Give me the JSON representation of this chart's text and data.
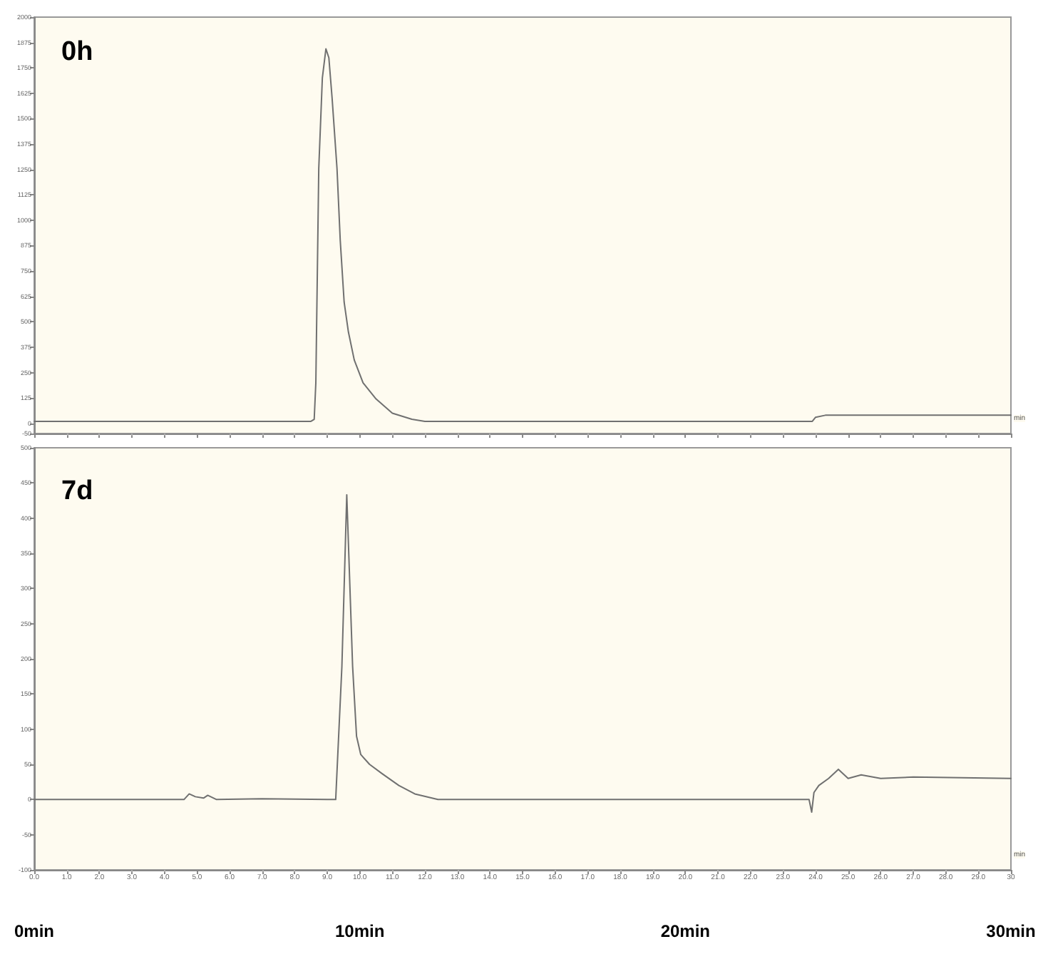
{
  "chart_data": [
    {
      "type": "line",
      "title": "0h",
      "xlabel": "min",
      "xlim": [
        0,
        30
      ],
      "xticks": [
        0,
        1,
        2,
        3,
        4,
        5,
        6,
        7,
        8,
        9,
        10,
        11,
        12,
        13,
        14,
        15,
        16,
        17,
        18,
        19,
        20,
        21,
        22,
        23,
        24,
        25,
        26,
        27,
        28,
        29,
        30
      ],
      "ylim": [
        -50,
        2000
      ],
      "yticks": [
        -50,
        0,
        125,
        250,
        375,
        500,
        625,
        750,
        875,
        1000,
        1125,
        1250,
        1375,
        1500,
        1625,
        1750,
        1875,
        2000
      ],
      "tick_labels": "y",
      "grid": false,
      "marker": "none",
      "line_style": "solid",
      "series": [
        {
          "color": "#707070",
          "x": [
            0,
            4,
            8.5,
            8.6,
            8.65,
            8.74,
            8.85,
            8.96,
            9.05,
            9.15,
            9.3,
            9.4,
            9.52,
            9.65,
            9.83,
            10.1,
            10.5,
            11.0,
            11.6,
            12,
            15,
            20,
            23.8,
            23.9,
            24.0,
            24.3,
            25,
            30
          ],
          "values": [
            10,
            10,
            10,
            20,
            200,
            1255,
            1700,
            1844,
            1800,
            1600,
            1255,
            900,
            596,
            450,
            312,
            200,
            120,
            50,
            20,
            10,
            10,
            10,
            10,
            10,
            30,
            40,
            40,
            40
          ]
        }
      ]
    },
    {
      "type": "line",
      "title": "7d",
      "xlabel": "min",
      "xlim": [
        0,
        30
      ],
      "xticks": [
        {
          "value": 0,
          "label": "0.0"
        },
        {
          "value": 1,
          "label": "1.0"
        },
        {
          "value": 2,
          "label": "2.0"
        },
        {
          "value": 3,
          "label": "3.0"
        },
        {
          "value": 4,
          "label": "4.0"
        },
        {
          "value": 5,
          "label": "5.0"
        },
        {
          "value": 6,
          "label": "6.0"
        },
        {
          "value": 7,
          "label": "7.0"
        },
        {
          "value": 8,
          "label": "8.0"
        },
        {
          "value": 9,
          "label": "9.0"
        },
        {
          "value": 10,
          "label": "10.0"
        },
        {
          "value": 11,
          "label": "11.0"
        },
        {
          "value": 12,
          "label": "12.0"
        },
        {
          "value": 13,
          "label": "13.0"
        },
        {
          "value": 14,
          "label": "14.0"
        },
        {
          "value": 15,
          "label": "15.0"
        },
        {
          "value": 16,
          "label": "16.0"
        },
        {
          "value": 17,
          "label": "17.0"
        },
        {
          "value": 18,
          "label": "18.0"
        },
        {
          "value": 19,
          "label": "19.0"
        },
        {
          "value": 20,
          "label": "20.0"
        },
        {
          "value": 21,
          "label": "21.0"
        },
        {
          "value": 22,
          "label": "22.0"
        },
        {
          "value": 23,
          "label": "23.0"
        },
        {
          "value": 24,
          "label": "24.0"
        },
        {
          "value": 25,
          "label": "25.0"
        },
        {
          "value": 26,
          "label": "26.0"
        },
        {
          "value": 27,
          "label": "27.0"
        },
        {
          "value": 28,
          "label": "28.0"
        },
        {
          "value": 29,
          "label": "29.0"
        },
        {
          "value": 30,
          "label": "30"
        }
      ],
      "x2lim": [
        0,
        30
      ],
      "x2ticks": [
        {
          "value": 0,
          "label": "0min"
        },
        {
          "value": 10,
          "label": "10min"
        },
        {
          "value": 20,
          "label": "20min"
        },
        {
          "value": 30,
          "label": "30min"
        }
      ],
      "ylim": [
        -100,
        500
      ],
      "yticks": [
        -100,
        -50,
        0,
        50,
        100,
        150,
        200,
        250,
        300,
        350,
        400,
        450,
        500
      ],
      "grid": false,
      "marker": "none",
      "line_style": "solid",
      "series": [
        {
          "color": "#707070",
          "x": [
            0,
            3,
            4.6,
            4.76,
            4.95,
            5.2,
            5.33,
            5.6,
            7,
            9.0,
            9.26,
            9.45,
            9.6,
            9.78,
            9.9,
            10.03,
            10.3,
            10.68,
            11.2,
            11.69,
            12.4,
            15,
            20,
            23.8,
            23.88,
            23.95,
            24.1,
            24.4,
            24.7,
            25.0,
            25.4,
            26,
            27,
            30
          ],
          "values": [
            0,
            0,
            0,
            8,
            4,
            2,
            6,
            0,
            1,
            0,
            0,
            189,
            433,
            189,
            90,
            64,
            50,
            37,
            20,
            8,
            0,
            0,
            0,
            0,
            -18,
            10,
            20,
            30,
            43,
            30,
            35,
            30,
            32,
            30
          ]
        }
      ]
    }
  ]
}
